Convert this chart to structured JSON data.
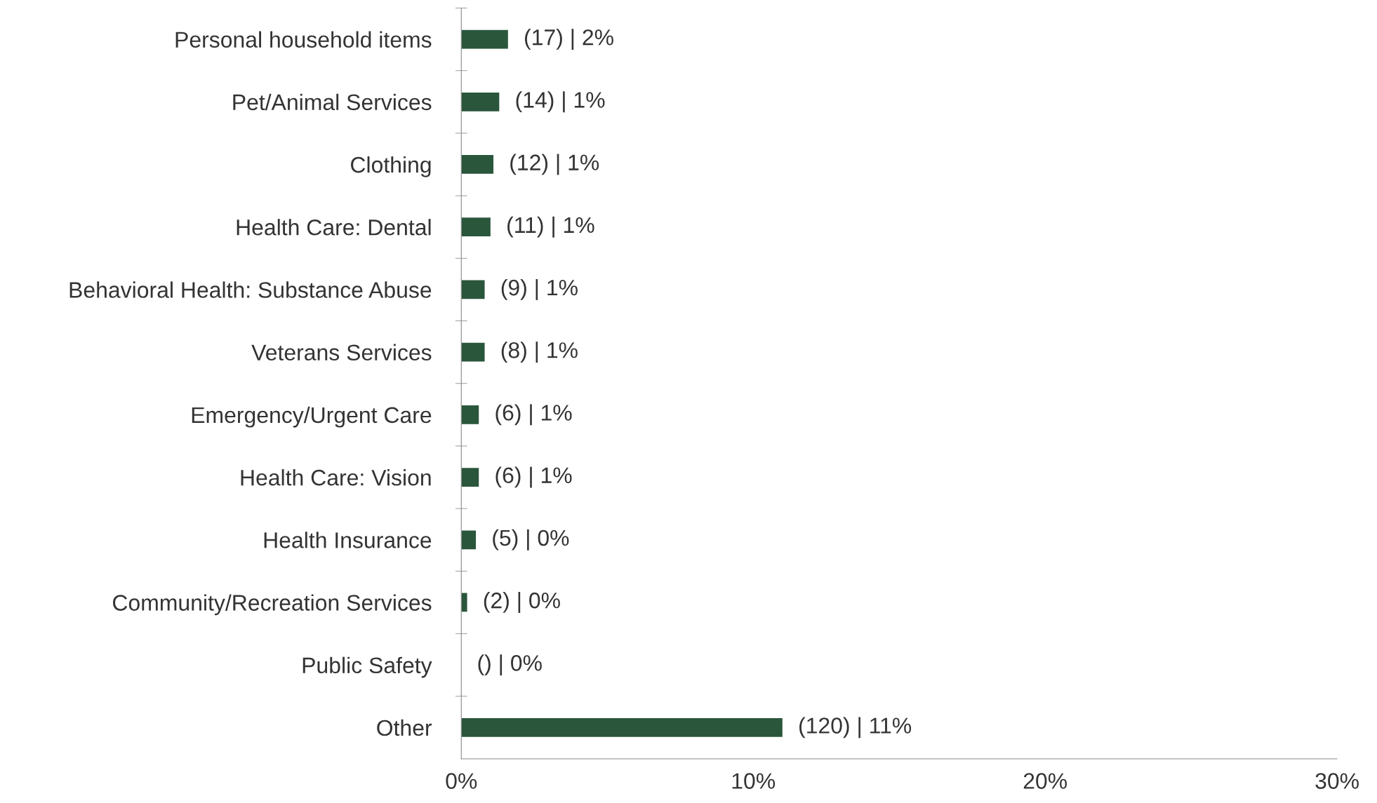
{
  "chart_data": {
    "type": "bar",
    "orientation": "horizontal",
    "categories": [
      "Personal household items",
      "Pet/Animal Services",
      "Clothing",
      "Health Care: Dental",
      "Behavioral Health: Substance Abuse",
      "Veterans Services",
      "Emergency/Urgent Care",
      "Health Care: Vision",
      "Health Insurance",
      "Community/Recreation Services",
      "Public Safety",
      "Other"
    ],
    "values": [
      1.6,
      1.3,
      1.1,
      1.0,
      0.8,
      0.8,
      0.6,
      0.6,
      0.5,
      0.2,
      0,
      11.0
    ],
    "value_labels": [
      "(17) | 2%",
      "(14) | 1%",
      "(12) | 1%",
      "(11) | 1%",
      "(9) | 1%",
      "(8) | 1%",
      "(6) | 1%",
      "(6) | 1%",
      "(5) | 0%",
      "(2) | 0%",
      "() | 0%",
      "(120) | 11%"
    ],
    "color": "#2a563c",
    "xlim": [
      0,
      30
    ],
    "xticks": [
      {
        "value": 0,
        "label": "0%"
      },
      {
        "value": 10,
        "label": "10%"
      },
      {
        "value": 20,
        "label": "20%"
      },
      {
        "value": 30,
        "label": "30%"
      }
    ],
    "grid": false,
    "legend": false
  }
}
